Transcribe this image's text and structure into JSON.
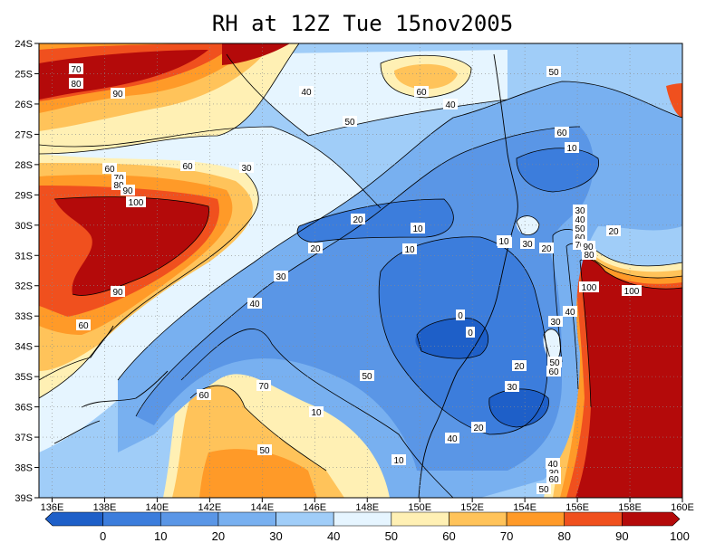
{
  "title": "RH at 12Z Tue 15nov2005",
  "chart_data": {
    "type": "heatmap",
    "title": "RH at 12Z Tue 15nov2005",
    "variable": "RH",
    "lon_range": [
      135.5,
      160
    ],
    "lat_range": [
      -39,
      -24
    ],
    "x_ticks": [
      "136E",
      "138E",
      "140E",
      "142E",
      "144E",
      "146E",
      "148E",
      "150E",
      "152E",
      "154E",
      "156E",
      "158E",
      "160E"
    ],
    "y_ticks": [
      "24S",
      "25S",
      "26S",
      "27S",
      "28S",
      "29S",
      "30S",
      "31S",
      "32S",
      "33S",
      "34S",
      "35S",
      "36S",
      "37S",
      "38S",
      "39S"
    ],
    "contour_labels": [
      "70",
      "80",
      "90",
      "60",
      "70",
      "80",
      "90",
      "100",
      "60",
      "90",
      "40",
      "50",
      "60",
      "30",
      "40",
      "50",
      "60",
      "10",
      "20",
      "10",
      "30",
      "20",
      "30",
      "40",
      "50",
      "60",
      "70",
      "80",
      "90",
      "100",
      "100",
      "0",
      "0",
      "10",
      "20",
      "30",
      "40",
      "10",
      "20",
      "30",
      "40",
      "50",
      "60",
      "60",
      "70",
      "50",
      "10",
      "20",
      "30",
      "40",
      "50",
      "60",
      "10",
      "20",
      "40",
      "30",
      "60",
      "50",
      "10"
    ],
    "legend_levels": [
      "0",
      "10",
      "20",
      "30",
      "40",
      "50",
      "60",
      "70",
      "80",
      "90",
      "100"
    ],
    "colors": [
      "#1e5fc8",
      "#3c7ddc",
      "#5a96e6",
      "#78b0f0",
      "#a0cdf8",
      "#e6f5ff",
      "#fff0b4",
      "#ffc35a",
      "#ff9a28",
      "#f0501e",
      "#b40a0a"
    ],
    "grid": "dotted"
  }
}
